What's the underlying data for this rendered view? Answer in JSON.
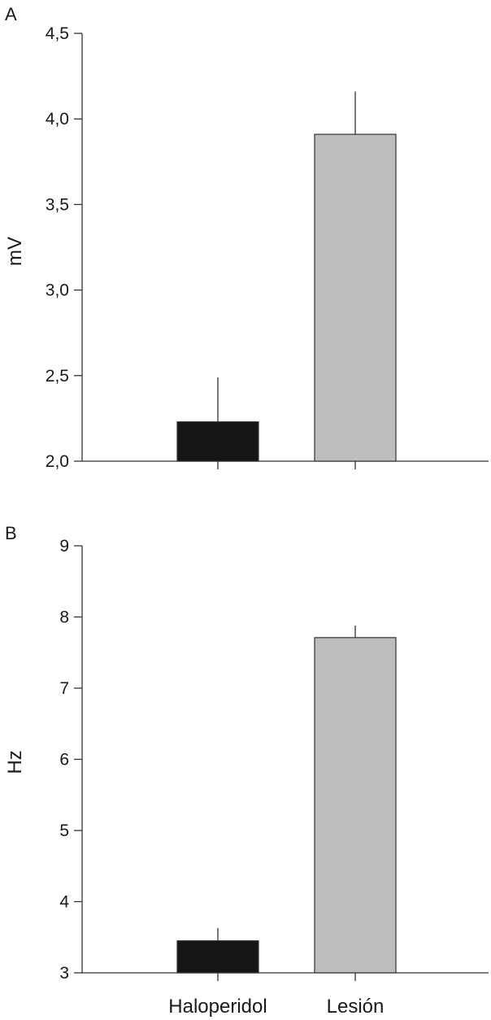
{
  "chart_data": [
    {
      "type": "bar",
      "panel_label": "A",
      "title": "",
      "xlabel": "",
      "ylabel": "mV",
      "ylim": [
        2.0,
        4.5
      ],
      "yticks": [
        2.0,
        2.5,
        3.0,
        3.5,
        4.0,
        4.5
      ],
      "ytick_labels": [
        "2,0",
        "2,5",
        "3,0",
        "3,5",
        "4,0",
        "4,5"
      ],
      "categories": [
        "Haloperidol",
        "Lesión"
      ],
      "values": [
        2.23,
        3.91
      ],
      "error_upper": [
        2.49,
        4.16
      ],
      "colors": [
        "#151515",
        "#bdbdbd"
      ],
      "show_category_labels": false,
      "grid": false
    },
    {
      "type": "bar",
      "panel_label": "B",
      "title": "",
      "xlabel": "",
      "ylabel": "Hz",
      "ylim": [
        3,
        9
      ],
      "yticks": [
        3,
        4,
        5,
        6,
        7,
        8,
        9
      ],
      "ytick_labels": [
        "3",
        "4",
        "5",
        "6",
        "7",
        "8",
        "9"
      ],
      "categories": [
        "Haloperidol",
        "Lesión"
      ],
      "values": [
        3.45,
        7.71
      ],
      "error_upper": [
        3.63,
        7.88
      ],
      "colors": [
        "#151515",
        "#bdbdbd"
      ],
      "show_category_labels": true,
      "grid": false
    }
  ]
}
